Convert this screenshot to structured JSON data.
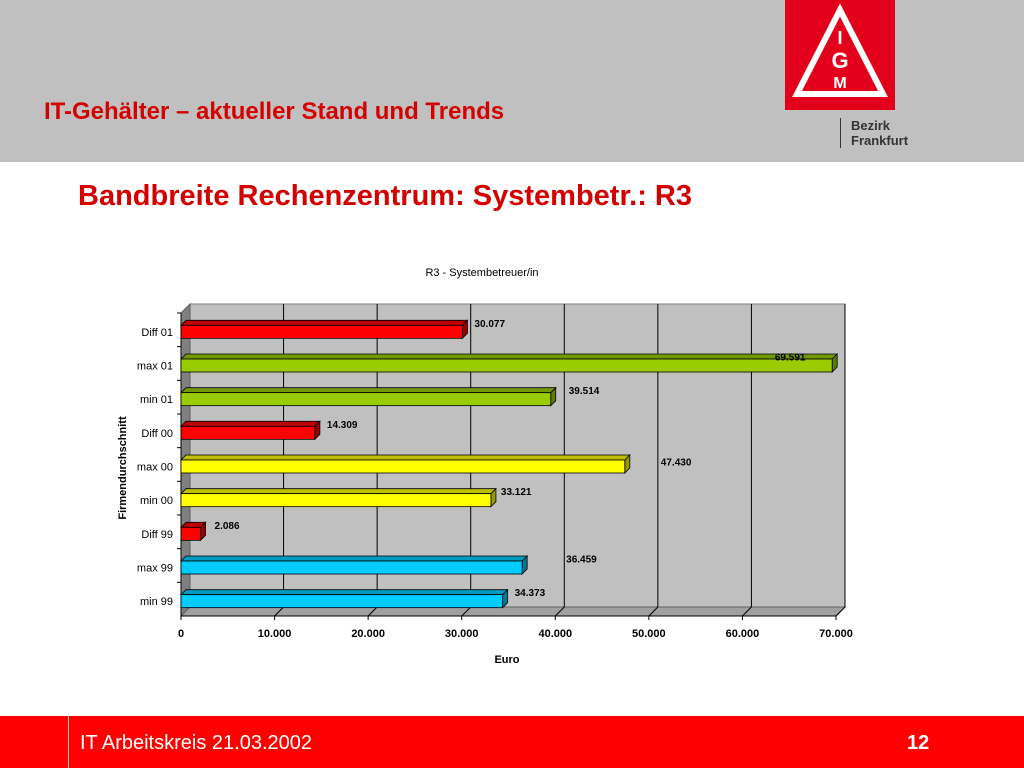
{
  "header": {
    "title": "IT-Gehälter – aktueller Stand und Trends",
    "logo": {
      "name": "igm-logo",
      "letters": "IGM"
    },
    "bezirk_line1": "Bezirk",
    "bezirk_line2": "Frankfurt"
  },
  "slide_title": "Bandbreite Rechenzentrum: Systembetr.: R3",
  "footer": {
    "text": "IT Arbeitskreis 21.03.2002",
    "page": "12"
  },
  "colors": {
    "header_bg": "#c0c0c0",
    "accent_red": "#d40000",
    "footer_bg": "#ff0000"
  },
  "chart_data": {
    "type": "bar",
    "orientation": "horizontal",
    "style": "3d",
    "title": "R3 - Systembetreuer/in",
    "xlabel": "Euro",
    "ylabel": "Firmendurchschnitt",
    "xlim": [
      0,
      70000
    ],
    "xticks": [
      0,
      10000,
      20000,
      30000,
      40000,
      50000,
      60000,
      70000
    ],
    "xtick_labels": [
      "0",
      "10.000",
      "20.000",
      "30.000",
      "40.000",
      "50.000",
      "60.000",
      "70.000"
    ],
    "grid": "vertical",
    "categories": [
      "Diff 01",
      "max 01",
      "min 01",
      "Diff  00",
      "max 00",
      "min 00",
      "Diff 99",
      "max 99",
      "min 99"
    ],
    "values": [
      30077,
      69591,
      39514,
      14309,
      47430,
      33121,
      2086,
      36459,
      34373
    ],
    "value_labels": [
      "30.077",
      "69.591",
      "39.514",
      "14.309",
      "47.430",
      "33.121",
      "2.086",
      "36.459",
      "34.373"
    ],
    "bar_colors": [
      "#ff0000",
      "#99cc00",
      "#99cc00",
      "#ff0000",
      "#ffff00",
      "#ffff00",
      "#ff0000",
      "#00ccff",
      "#00ccff"
    ]
  }
}
